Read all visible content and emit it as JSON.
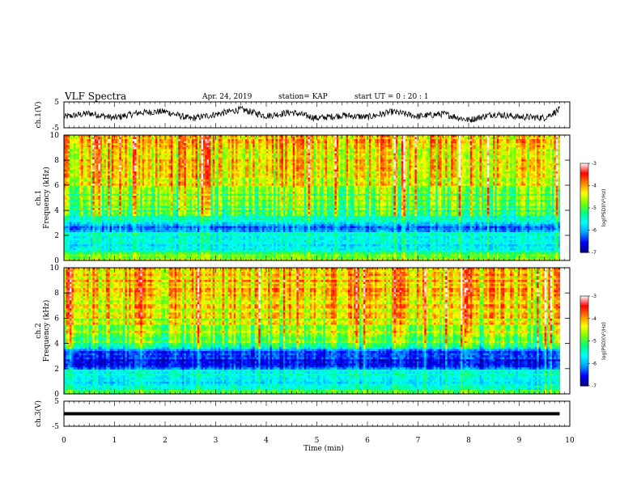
{
  "header": {
    "title": "VLF Spectra",
    "date": "Apr. 24, 2019",
    "station": "station= KAP",
    "start": "start  UT =   0 : 20 : 1"
  },
  "chart_data": [
    {
      "type": "line",
      "name": "ch1-waveform",
      "ylabel": "ch.1(V)",
      "ylim": [
        -5,
        5
      ],
      "yticks": [
        "5",
        "-5"
      ],
      "xlim": [
        0,
        10
      ],
      "x": [
        0,
        0.5,
        1,
        1.5,
        2,
        2.5,
        3,
        3.5,
        4,
        4.5,
        5,
        5.5,
        6,
        6.5,
        7,
        7.5,
        8,
        8.5,
        9,
        9.5,
        9.8
      ],
      "y": [
        -0.8,
        0.6,
        -1.2,
        0.9,
        1.3,
        -1.5,
        0.2,
        2.1,
        -0.4,
        1.0,
        -1.3,
        -0.2,
        -0.9,
        1.2,
        -0.6,
        0.4,
        -2.0,
        0.3,
        -0.8,
        -1.1,
        2.0
      ]
    },
    {
      "type": "heatmap",
      "name": "ch1-spectrogram",
      "ylabel": "ch.1\nFrequency (kHz)",
      "ylim": [
        0,
        10
      ],
      "yticks": [
        "0",
        "2",
        "4",
        "6",
        "8",
        "10"
      ],
      "xlim": [
        0,
        10
      ],
      "data_end_min": 9.8,
      "colorbar": {
        "label": "log(PSD)(V²/Hz)",
        "range": [
          -7,
          -3
        ],
        "ticks": [
          "-3",
          "-4",
          "-5",
          "-6",
          "-7"
        ]
      },
      "band_profile_khz": [
        {
          "f": 10,
          "v": -4.2
        },
        {
          "f": 8,
          "v": -4.2
        },
        {
          "f": 6,
          "v": -4.4
        },
        {
          "f": 5.4,
          "v": -4.9
        },
        {
          "f": 4,
          "v": -5.0
        },
        {
          "f": 3.2,
          "v": -5.6
        },
        {
          "f": 2.6,
          "v": -6.5
        },
        {
          "f": 2.0,
          "v": -5.4
        },
        {
          "f": 1.2,
          "v": -5.8
        },
        {
          "f": 0.6,
          "v": -5.2
        },
        {
          "f": 0,
          "v": -4.6
        }
      ]
    },
    {
      "type": "heatmap",
      "name": "ch2-spectrogram",
      "ylabel": "ch.2\nFrequency (kHz)",
      "ylim": [
        0,
        10
      ],
      "yticks": [
        "0",
        "2",
        "4",
        "6",
        "8",
        "10"
      ],
      "xlim": [
        0,
        10
      ],
      "data_end_min": 9.8,
      "colorbar": {
        "label": "log(PSD)(V²/Hz)",
        "range": [
          -7,
          -3
        ],
        "ticks": [
          "-3",
          "-4",
          "-5",
          "-6",
          "-7"
        ]
      },
      "band_profile_khz": [
        {
          "f": 10,
          "v": -4.1
        },
        {
          "f": 8,
          "v": -4.2
        },
        {
          "f": 6,
          "v": -4.4
        },
        {
          "f": 4,
          "v": -5.0
        },
        {
          "f": 3.1,
          "v": -6.6
        },
        {
          "f": 2.2,
          "v": -6.5
        },
        {
          "f": 1.8,
          "v": -5.6
        },
        {
          "f": 1.0,
          "v": -5.9
        },
        {
          "f": 0.3,
          "v": -5.3
        },
        {
          "f": 0,
          "v": -4.7
        }
      ]
    },
    {
      "type": "line",
      "name": "ch3-waveform",
      "ylabel": "ch.3(V)",
      "ylim": [
        -5,
        5
      ],
      "yticks": [
        "5",
        "-5"
      ],
      "xlim": [
        0,
        10
      ],
      "x": [
        0,
        9.8
      ],
      "y": [
        0,
        0
      ]
    }
  ],
  "xaxis": {
    "label": "Time  (min)",
    "ticks": [
      "0",
      "1",
      "2",
      "3",
      "4",
      "5",
      "6",
      "7",
      "8",
      "9",
      "10"
    ]
  },
  "colors": {
    "cmap": [
      "#00007f",
      "#0000ff",
      "#00a0ff",
      "#00ffff",
      "#00ff80",
      "#80ff00",
      "#ffff00",
      "#ff8000",
      "#ff0000",
      "#ffffff"
    ]
  }
}
